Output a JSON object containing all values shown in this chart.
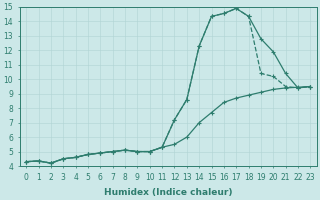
{
  "xlabel": "Humidex (Indice chaleur)",
  "ylabel": "",
  "xlim": [
    -0.5,
    23.5
  ],
  "ylim": [
    4,
    15
  ],
  "xticks": [
    0,
    1,
    2,
    3,
    4,
    5,
    6,
    7,
    8,
    9,
    10,
    11,
    12,
    13,
    14,
    15,
    16,
    17,
    18,
    19,
    20,
    21,
    22,
    23
  ],
  "yticks": [
    4,
    5,
    6,
    7,
    8,
    9,
    10,
    11,
    12,
    13,
    14,
    15
  ],
  "color": "#2e7d6e",
  "background": "#cce8e8",
  "line1_x": [
    0,
    1,
    2,
    3,
    4,
    5,
    6,
    7,
    8,
    9,
    10,
    11,
    12,
    13,
    14,
    15,
    16,
    17,
    18,
    19,
    20,
    21,
    22,
    23
  ],
  "line1_y": [
    4.3,
    4.35,
    4.2,
    4.5,
    4.6,
    4.8,
    4.9,
    5.0,
    5.1,
    5.0,
    5.0,
    5.3,
    7.2,
    8.6,
    12.3,
    14.35,
    14.55,
    14.9,
    14.35,
    10.4,
    10.2,
    9.5,
    9.4,
    9.5
  ],
  "line2_x": [
    0,
    1,
    2,
    3,
    4,
    5,
    6,
    7,
    8,
    9,
    10,
    11,
    12,
    13,
    14,
    15,
    16,
    17,
    18,
    19,
    20,
    21,
    22,
    23
  ],
  "line2_y": [
    4.3,
    4.35,
    4.2,
    4.5,
    4.6,
    4.8,
    4.9,
    5.0,
    5.1,
    5.0,
    5.0,
    5.3,
    7.2,
    8.6,
    12.3,
    14.35,
    14.55,
    14.9,
    14.35,
    12.8,
    11.9,
    10.4,
    9.4,
    9.5
  ],
  "line3_x": [
    0,
    1,
    2,
    3,
    4,
    5,
    6,
    7,
    8,
    9,
    10,
    11,
    12,
    13,
    14,
    15,
    16,
    17,
    18,
    19,
    20,
    21,
    22,
    23
  ],
  "line3_y": [
    4.3,
    4.35,
    4.2,
    4.5,
    4.6,
    4.8,
    4.9,
    5.0,
    5.1,
    5.0,
    5.0,
    5.3,
    5.5,
    6.0,
    7.0,
    7.7,
    8.4,
    8.7,
    8.9,
    9.1,
    9.3,
    9.4,
    9.45,
    9.5
  ]
}
